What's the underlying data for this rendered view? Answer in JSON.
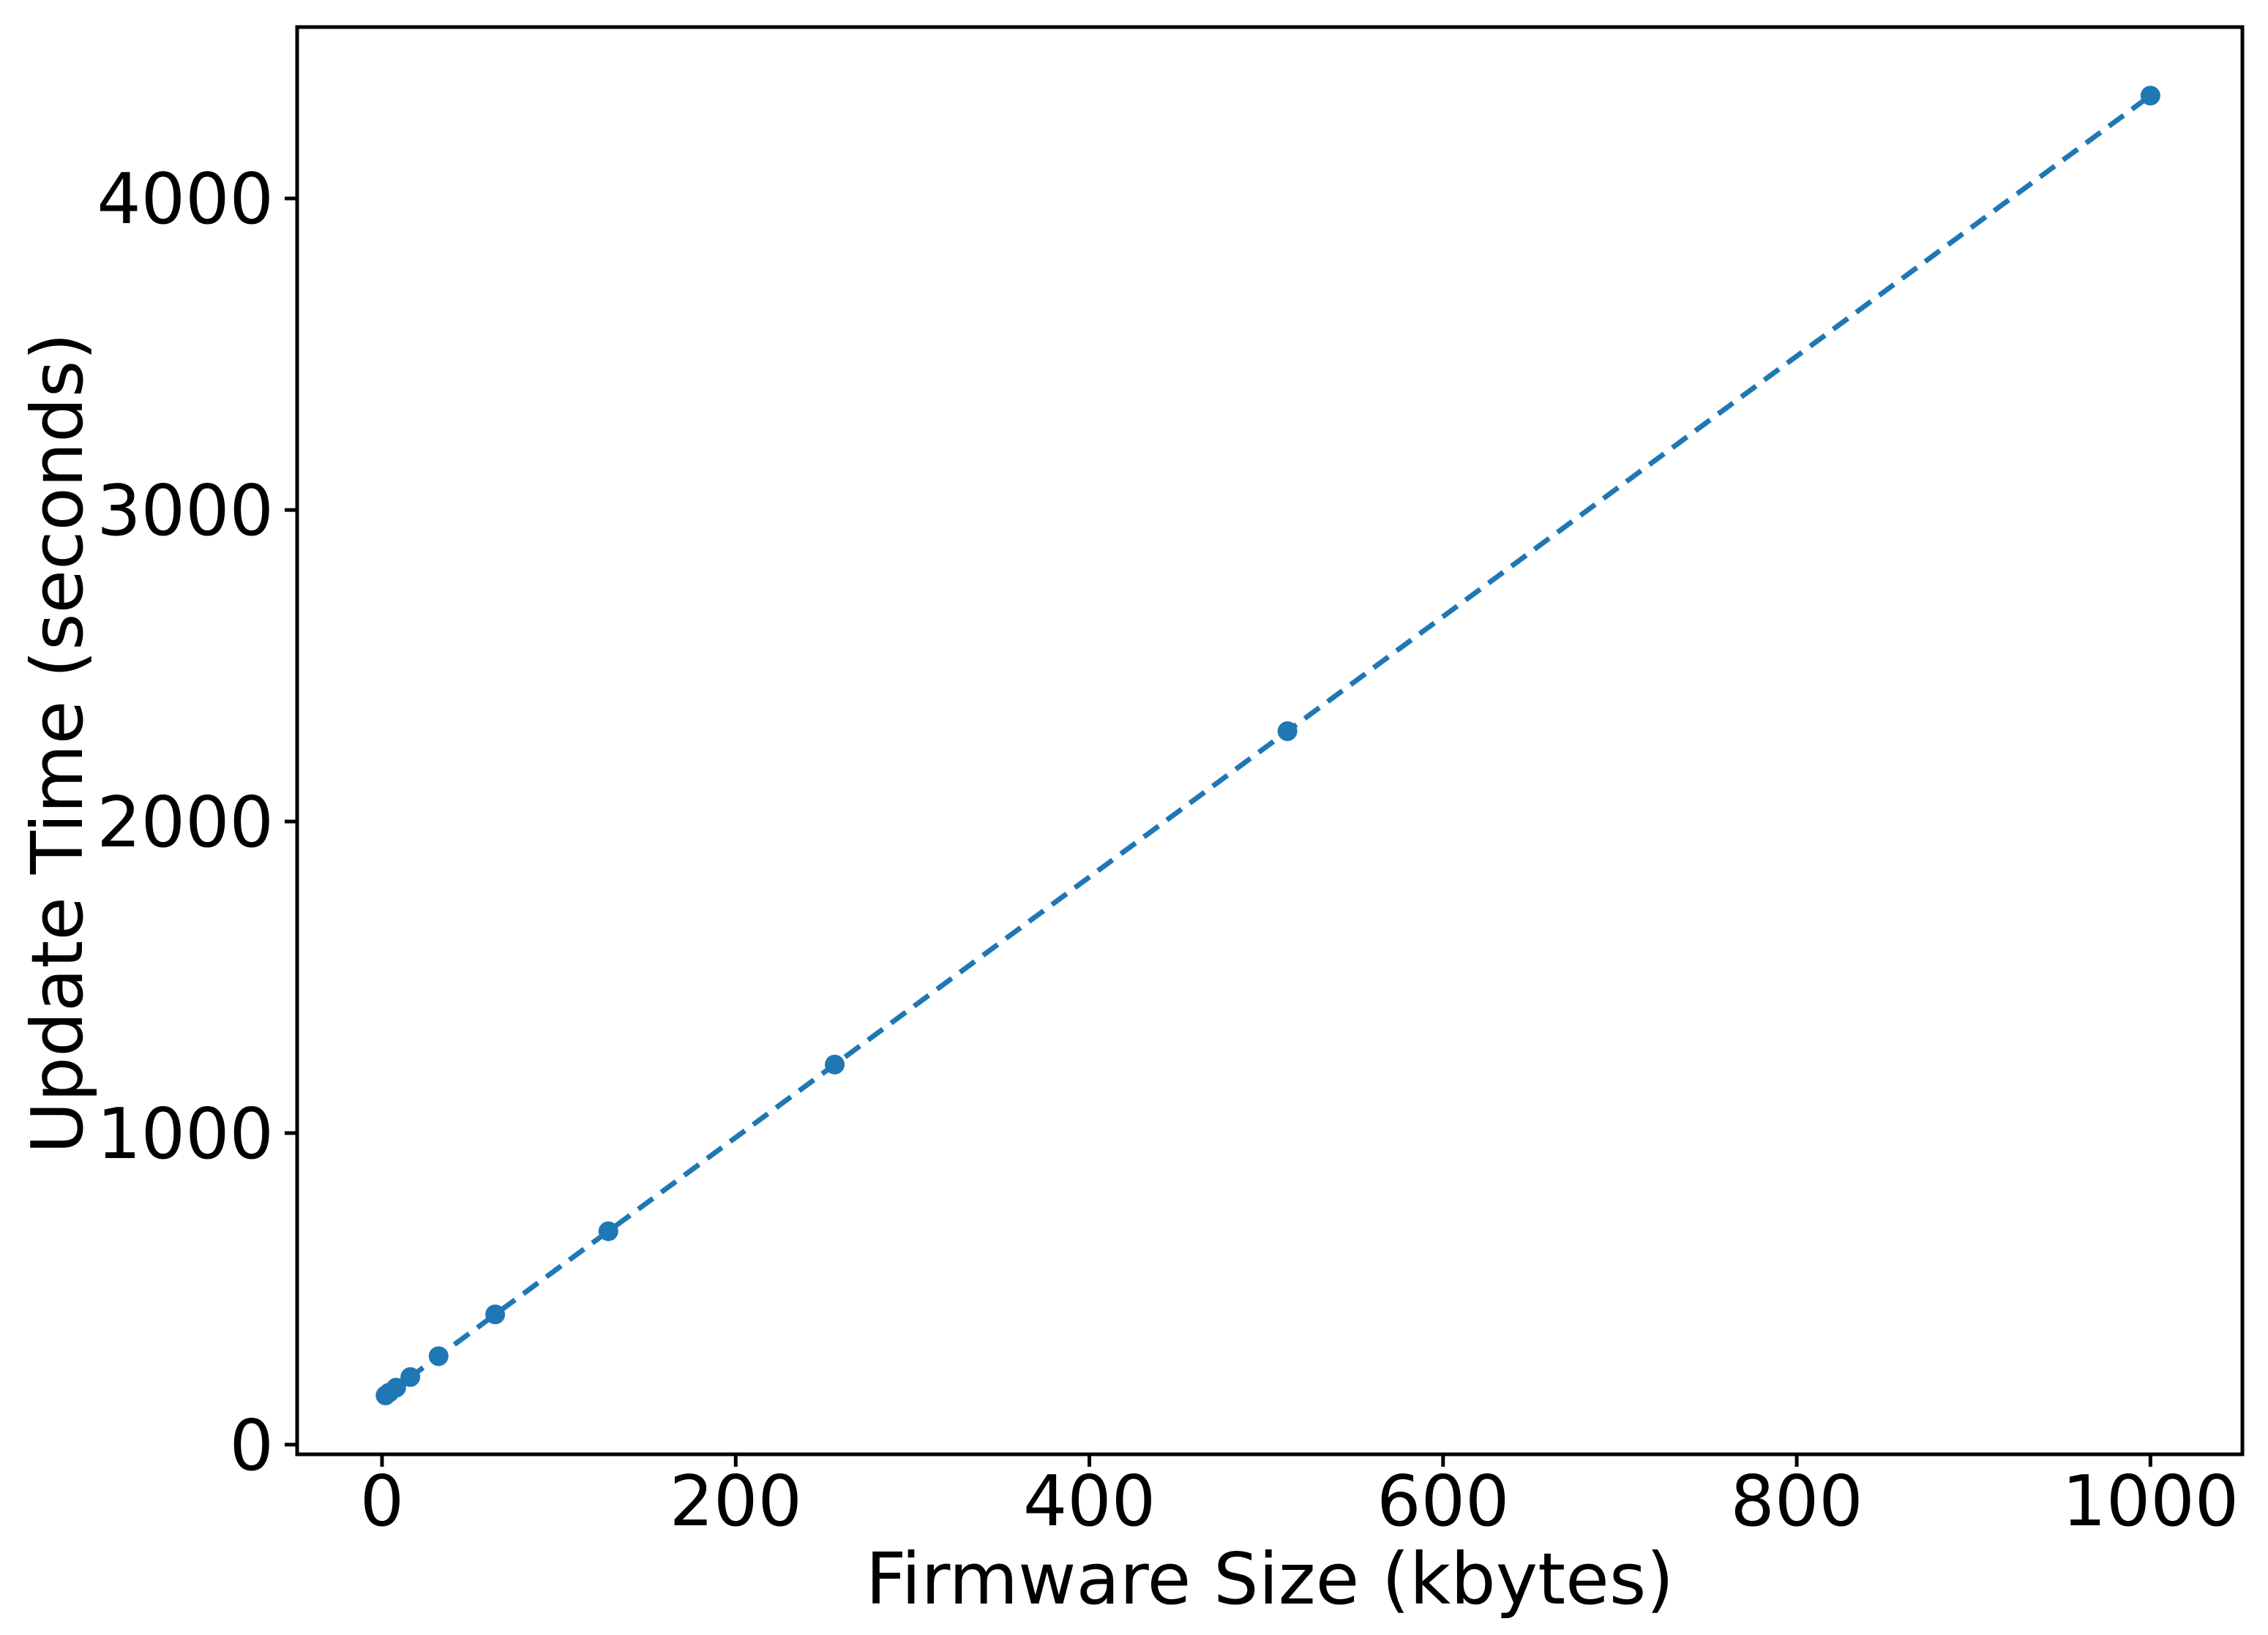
{
  "figure": {
    "background_color": "#ffffff",
    "axes_color": "#000000"
  },
  "chart_data": {
    "type": "line",
    "title": "",
    "xlabel": "Firmware Size (kbytes)",
    "ylabel": "Update Time (seconds)",
    "xlim": [
      -48,
      1052
    ],
    "ylim": [
      -31,
      4550
    ],
    "x_ticks": [
      0,
      200,
      400,
      600,
      800,
      1000
    ],
    "y_ticks": [
      0,
      1000,
      2000,
      3000,
      4000
    ],
    "grid": false,
    "legend": null,
    "series": [
      {
        "name": "update-time-vs-firmware-size",
        "color": "#1f77b4",
        "linestyle": "dashed",
        "marker": "circle",
        "x": [
          2,
          4,
          8,
          16,
          32,
          64,
          128,
          256,
          512,
          1000
        ],
        "y": [
          158,
          167,
          183,
          217,
          284,
          418,
          685,
          1220,
          2290,
          4330
        ]
      }
    ]
  }
}
